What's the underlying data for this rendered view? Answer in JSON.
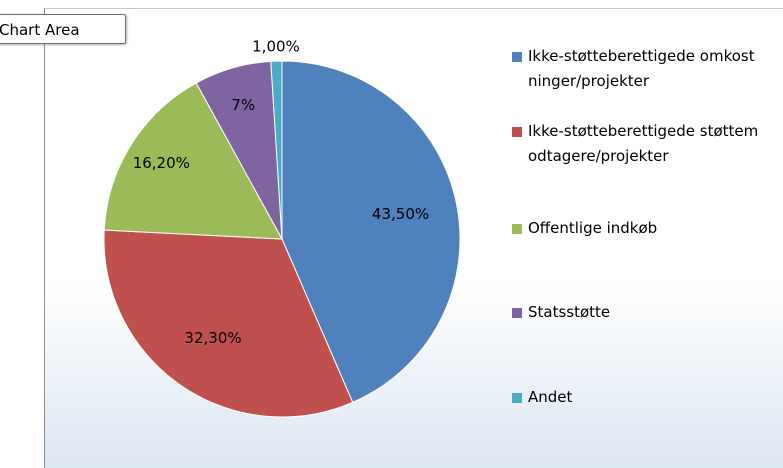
{
  "chart_data": {
    "type": "pie",
    "tooltip": "Chart Area",
    "categories": [
      "Ikke-støtteberettigede omkostninger/projekter",
      "Ikke-støtteberettigede støttemodtagere/projekter",
      "Offentlige indkøb",
      "Statsstøtte",
      "Andet"
    ],
    "values": [
      43.5,
      32.3,
      16.2,
      7,
      1
    ],
    "value_labels": [
      "43,50%",
      "32,30%",
      "16,20%",
      "7%",
      "1,00%"
    ],
    "colors": [
      "#4f81bd",
      "#c0504d",
      "#9bbb59",
      "#8064a2",
      "#4bacc6"
    ],
    "legend": "right"
  }
}
